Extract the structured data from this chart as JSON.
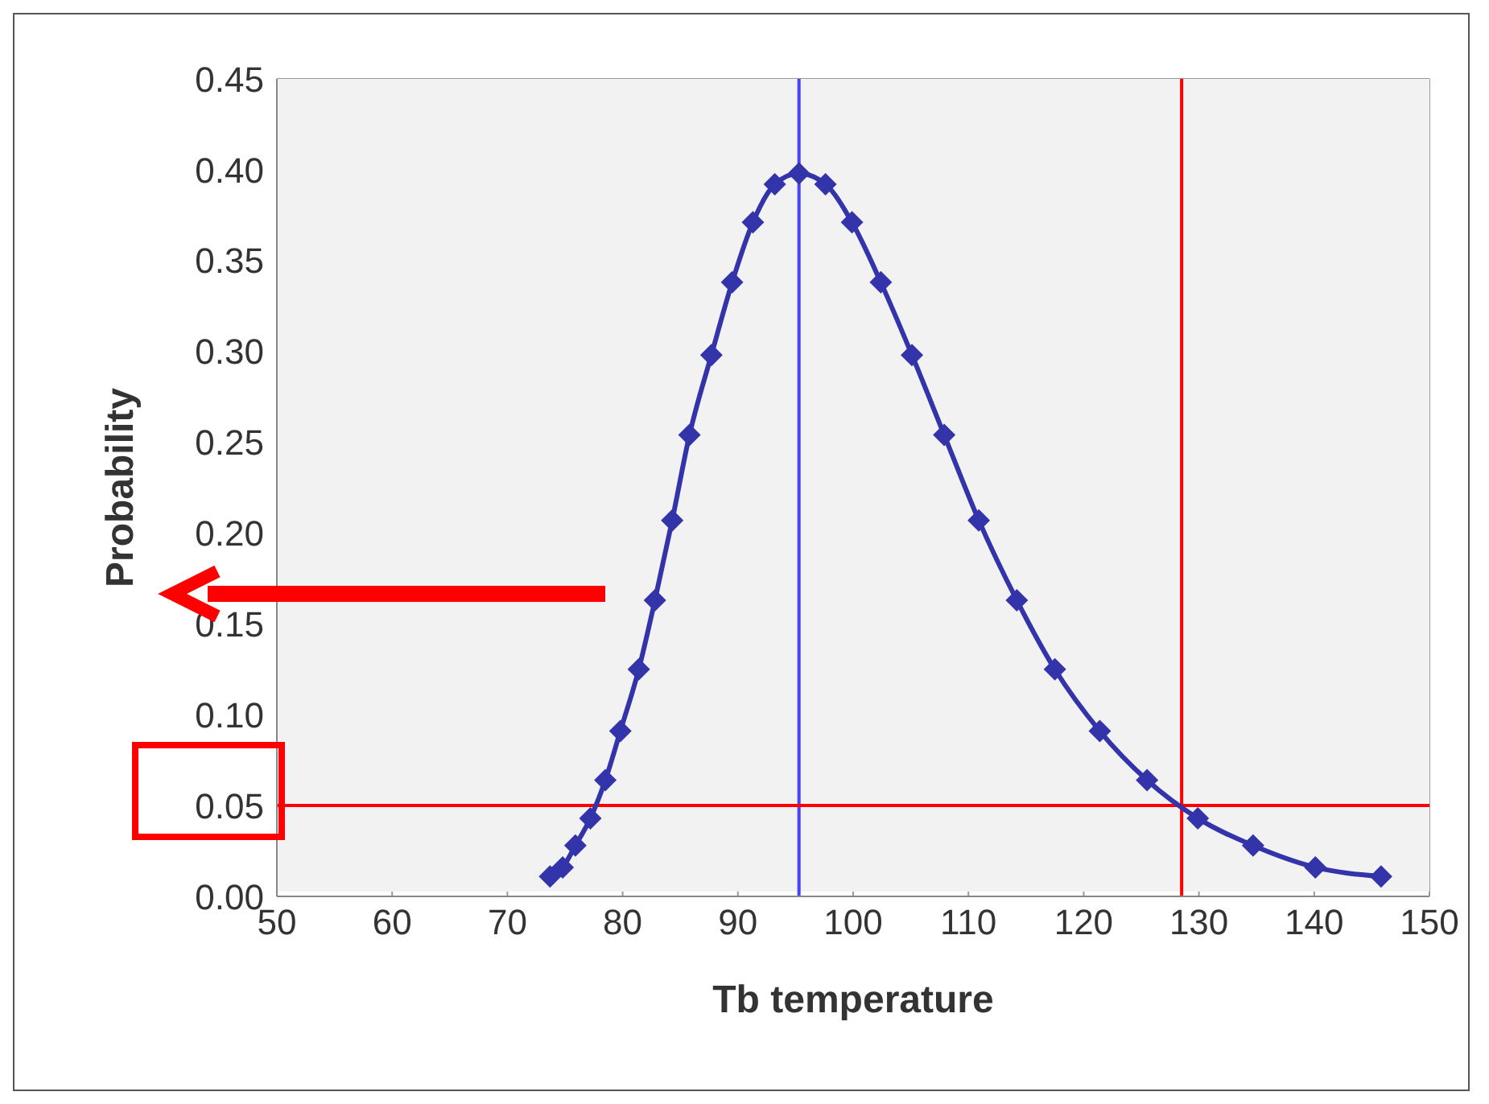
{
  "chart_data": {
    "type": "line",
    "xlabel": "Tb temperature",
    "ylabel": "Probability",
    "x": [
      73.7,
      74.8,
      75.9,
      77.2,
      78.5,
      79.8,
      81.4,
      82.8,
      84.3,
      85.8,
      87.7,
      89.5,
      91.3,
      93.2,
      95.3,
      97.6,
      99.9,
      102.4,
      105.1,
      107.9,
      110.9,
      114.2,
      117.5,
      121.4,
      125.5,
      129.9,
      134.7,
      140.1,
      145.8
    ],
    "series": [
      {
        "color": "#3333aa",
        "values": [
          0.011,
          0.016,
          0.028,
          0.043,
          0.064,
          0.091,
          0.125,
          0.163,
          0.207,
          0.254,
          0.298,
          0.338,
          0.371,
          0.392,
          0.398,
          0.392,
          0.371,
          0.338,
          0.298,
          0.254,
          0.207,
          0.163,
          0.125,
          0.091,
          0.064,
          0.043,
          0.028,
          0.016,
          0.011
        ]
      }
    ],
    "xlim": [
      50,
      150
    ],
    "xticks": [
      50,
      60,
      70,
      80,
      90,
      100,
      110,
      120,
      130,
      140,
      150
    ],
    "ylim": [
      0,
      0.45
    ],
    "yticks": [
      {
        "value": 0,
        "label": "0.00"
      },
      {
        "value": 0.05,
        "label": "0.05"
      },
      {
        "value": 0.1,
        "label": "0.10"
      },
      {
        "value": 0.15,
        "label": "0.15"
      },
      {
        "value": 0.2,
        "label": "0.20"
      },
      {
        "value": 0.25,
        "label": "0.25"
      },
      {
        "value": 0.3,
        "label": "0.30"
      },
      {
        "value": 0.35,
        "label": "0.35"
      },
      {
        "value": 0.4,
        "label": "0.40"
      },
      {
        "value": 0.45,
        "label": "0.45"
      }
    ],
    "ref_lines": [
      {
        "axis": "x",
        "value": 95.3,
        "color": "#4444ff"
      },
      {
        "axis": "y",
        "value": 0.05,
        "color": "#ff0000"
      },
      {
        "axis": "x",
        "value": 128.5,
        "color": "#ff0000"
      }
    ],
    "grid": true,
    "legend": false,
    "marker": "diamond",
    "line_style": "solid"
  }
}
